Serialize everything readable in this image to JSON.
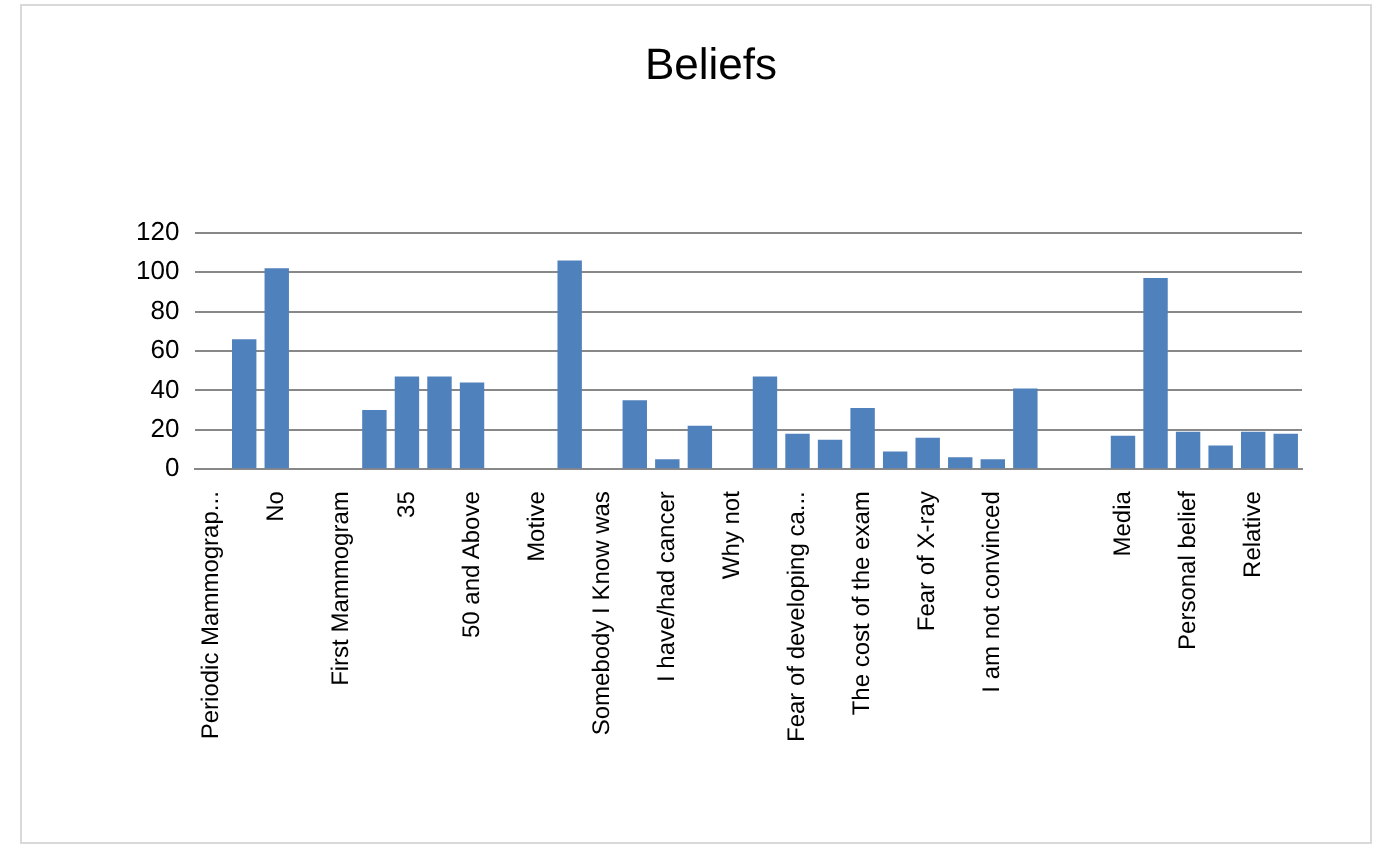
{
  "chart_data": {
    "type": "bar",
    "title": "Beliefs",
    "categories": [
      "Periodic Mammograp...",
      null,
      "No",
      null,
      "First Mammogram",
      null,
      "35",
      null,
      "50 and Above",
      null,
      "Motive",
      null,
      "Somebody I Know was",
      null,
      "I have/had cancer",
      null,
      "Why not",
      null,
      "Fear of developing ca...",
      null,
      "The cost of the exam",
      null,
      "Fear of X-ray",
      null,
      "I am not convinced",
      null,
      null,
      null,
      "Media",
      null,
      "Personal belief",
      null,
      "Relative",
      null
    ],
    "values": [
      null,
      66,
      102,
      null,
      null,
      30,
      47,
      47,
      44,
      null,
      null,
      106,
      null,
      35,
      5,
      22,
      null,
      47,
      18,
      15,
      31,
      9,
      16,
      6,
      5,
      41,
      null,
      null,
      17,
      97,
      19,
      12,
      19,
      18
    ],
    "color": "#4f81bd",
    "ylim": [
      0,
      120
    ],
    "yticks": [
      0,
      20,
      40,
      60,
      80,
      100,
      120
    ],
    "grid": "y"
  }
}
